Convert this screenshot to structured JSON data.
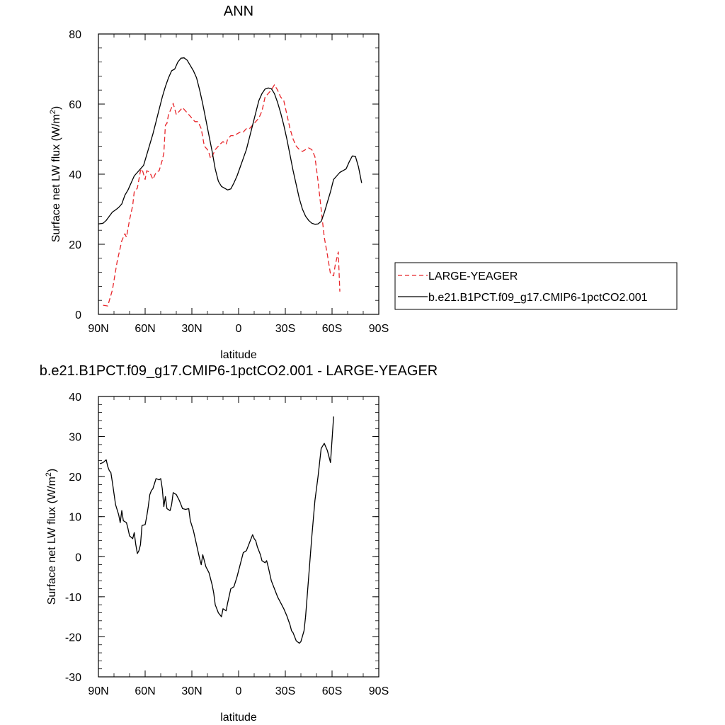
{
  "chart_data": [
    {
      "type": "line",
      "title": "ANN",
      "xlabel": "latitude",
      "ylabel": "Surface net LW flux (W/m",
      "ylabel_sup": "2",
      "ylabel_end": ")",
      "xlim": [
        90,
        -90
      ],
      "ylim": [
        0,
        80
      ],
      "x_tick_values": [
        90,
        60,
        30,
        0,
        -30,
        -60,
        -90
      ],
      "x_tick_labels": [
        "90N",
        "60N",
        "30N",
        "0",
        "30S",
        "60S",
        "90S"
      ],
      "y_tick_values": [
        0,
        20,
        40,
        60,
        80
      ],
      "y_tick_labels": [
        "0",
        "20",
        "40",
        "60",
        "80"
      ],
      "grid": false,
      "legend_position": "right",
      "series": [
        {
          "name": "LARGE-YEAGER",
          "color": "#e8262b",
          "dash": "dashed",
          "points": [
            [
              87,
              2.6
            ],
            [
              84,
              2.4
            ],
            [
              81,
              7
            ],
            [
              78,
              15
            ],
            [
              75,
              21
            ],
            [
              73,
              23
            ],
            [
              72,
              22
            ],
            [
              70,
              27
            ],
            [
              68,
              31
            ],
            [
              67,
              35
            ],
            [
              65,
              36
            ],
            [
              63,
              41
            ],
            [
              62,
              41.5
            ],
            [
              60,
              38.5
            ],
            [
              59,
              41
            ],
            [
              57,
              40.5
            ],
            [
              55,
              38.5
            ],
            [
              53,
              40.5
            ],
            [
              51,
              41
            ],
            [
              49,
              44
            ],
            [
              48,
              46
            ],
            [
              47,
              54
            ],
            [
              46,
              54.5
            ],
            [
              45,
              57
            ],
            [
              43,
              59
            ],
            [
              42,
              60.2
            ],
            [
              40,
              57
            ],
            [
              38,
              58
            ],
            [
              36,
              59
            ],
            [
              34,
              58
            ],
            [
              32,
              57
            ],
            [
              30,
              56
            ],
            [
              28,
              55
            ],
            [
              26,
              55
            ],
            [
              24,
              53
            ],
            [
              22,
              48
            ],
            [
              20,
              47
            ],
            [
              19,
              46
            ],
            [
              18,
              44.5
            ],
            [
              17,
              45
            ],
            [
              15,
              47
            ],
            [
              13,
              48
            ],
            [
              12,
              48.5
            ],
            [
              10,
              49.3
            ],
            [
              8,
              48.5
            ],
            [
              7,
              50
            ],
            [
              5,
              51
            ],
            [
              3,
              51
            ],
            [
              1,
              51.5
            ],
            [
              -1,
              52
            ],
            [
              -3,
              52
            ],
            [
              -5,
              53
            ],
            [
              -7,
              53
            ],
            [
              -9,
              54
            ],
            [
              -11,
              55
            ],
            [
              -13,
              56
            ],
            [
              -15,
              58
            ],
            [
              -17,
              62
            ],
            [
              -19,
              63
            ],
            [
              -21,
              64
            ],
            [
              -23,
              65.5
            ],
            [
              -25,
              64
            ],
            [
              -27,
              62
            ],
            [
              -29,
              61
            ],
            [
              -31,
              57
            ],
            [
              -33,
              53
            ],
            [
              -35,
              50
            ],
            [
              -37,
              48
            ],
            [
              -39,
              47
            ],
            [
              -41,
              46.5
            ],
            [
              -43,
              47
            ],
            [
              -45,
              47.5
            ],
            [
              -47,
              47
            ],
            [
              -49,
              45
            ],
            [
              -51,
              38
            ],
            [
              -53,
              30
            ],
            [
              -55,
              22
            ],
            [
              -57,
              17
            ],
            [
              -59,
              11.5
            ],
            [
              -61,
              11
            ],
            [
              -62,
              14
            ],
            [
              -64,
              17.8
            ],
            [
              -65,
              6.5
            ]
          ]
        },
        {
          "name": "b.e21.B1PCT.f09_g17.CMIP6-1pctCO2.001",
          "color": "#000000",
          "dash": "solid",
          "points": [
            [
              90,
              25.8
            ],
            [
              87,
              26
            ],
            [
              85,
              26.8
            ],
            [
              83,
              28
            ],
            [
              81,
              29.2
            ],
            [
              79,
              29.8
            ],
            [
              77,
              30.5
            ],
            [
              75,
              31.5
            ],
            [
              73,
              34
            ],
            [
              71,
              35.5
            ],
            [
              69,
              37.5
            ],
            [
              67,
              39.5
            ],
            [
              65,
              40.5
            ],
            [
              63,
              41.5
            ],
            [
              61,
              42.5
            ],
            [
              59,
              45.5
            ],
            [
              57,
              48.5
            ],
            [
              55,
              51.5
            ],
            [
              53,
              55
            ],
            [
              51,
              58.5
            ],
            [
              49,
              62
            ],
            [
              47,
              65
            ],
            [
              45,
              67.5
            ],
            [
              43,
              69.5
            ],
            [
              41,
              70
            ],
            [
              39,
              72
            ],
            [
              37,
              73.1
            ],
            [
              35,
              73.2
            ],
            [
              33,
              72.5
            ],
            [
              31,
              71
            ],
            [
              29,
              69.5
            ],
            [
              27,
              67.5
            ],
            [
              25,
              64
            ],
            [
              23,
              60
            ],
            [
              21,
              55.5
            ],
            [
              19,
              51
            ],
            [
              17,
              46.5
            ],
            [
              15,
              41.5
            ],
            [
              13,
              38
            ],
            [
              11,
              36.5
            ],
            [
              9,
              36
            ],
            [
              7,
              35.5
            ],
            [
              5,
              35.8
            ],
            [
              3,
              37.5
            ],
            [
              1,
              39.5
            ],
            [
              -1,
              42
            ],
            [
              -3,
              44.5
            ],
            [
              -5,
              47
            ],
            [
              -7,
              50.5
            ],
            [
              -9,
              54
            ],
            [
              -11,
              57.5
            ],
            [
              -13,
              61
            ],
            [
              -15,
              63
            ],
            [
              -17,
              64.3
            ],
            [
              -19,
              64.6
            ],
            [
              -21,
              64.4
            ],
            [
              -23,
              63
            ],
            [
              -25,
              60.5
            ],
            [
              -27,
              57.5
            ],
            [
              -29,
              54
            ],
            [
              -31,
              50
            ],
            [
              -33,
              45.5
            ],
            [
              -35,
              41
            ],
            [
              -37,
              37
            ],
            [
              -39,
              33
            ],
            [
              -41,
              30
            ],
            [
              -43,
              28
            ],
            [
              -45,
              26.8
            ],
            [
              -47,
              26
            ],
            [
              -49,
              25.7
            ],
            [
              -51,
              25.8
            ],
            [
              -53,
              26.5
            ],
            [
              -55,
              29
            ],
            [
              -57,
              32
            ],
            [
              -59,
              35
            ],
            [
              -61,
              38.5
            ],
            [
              -63,
              39.5
            ],
            [
              -65,
              40.5
            ],
            [
              -67,
              41
            ],
            [
              -69,
              41.5
            ],
            [
              -71,
              43.5
            ],
            [
              -73,
              45.2
            ],
            [
              -75,
              45.1
            ],
            [
              -77,
              42
            ],
            [
              -79,
              37.5
            ]
          ]
        }
      ]
    },
    {
      "type": "line",
      "title": "b.e21.B1PCT.f09_g17.CMIP6-1pctCO2.001 - LARGE-YEAGER",
      "xlabel": "latitude",
      "ylabel": "Surface net LW flux (W/m",
      "ylabel_sup": "2",
      "ylabel_end": ")",
      "xlim": [
        90,
        -90
      ],
      "ylim": [
        -30,
        40
      ],
      "x_tick_values": [
        90,
        60,
        30,
        0,
        -30,
        -60,
        -90
      ],
      "x_tick_labels": [
        "90N",
        "60N",
        "30N",
        "0",
        "30S",
        "60S",
        "90S"
      ],
      "y_tick_values": [
        -30,
        -20,
        -10,
        0,
        10,
        20,
        30,
        40
      ],
      "y_tick_labels": [
        "-30",
        "-20",
        "-10",
        "0",
        "10",
        "20",
        "30",
        "40"
      ],
      "grid": false,
      "series": [
        {
          "color": "#000000",
          "dash": "solid",
          "points": [
            [
              89,
              23.2
            ],
            [
              87,
              23.5
            ],
            [
              85,
              24.2
            ],
            [
              84,
              22.5
            ],
            [
              83,
              21.5
            ],
            [
              82,
              21
            ],
            [
              81,
              18.5
            ],
            [
              79,
              13
            ],
            [
              77,
              10.5
            ],
            [
              76,
              8.5
            ],
            [
              75,
              11.5
            ],
            [
              74,
              9
            ],
            [
              72,
              8.5
            ],
            [
              71,
              7
            ],
            [
              70,
              5.2
            ],
            [
              68,
              4.5
            ],
            [
              67,
              6
            ],
            [
              66,
              3
            ],
            [
              65,
              0.8
            ],
            [
              64,
              1.5
            ],
            [
              63,
              3
            ],
            [
              62,
              7.8
            ],
            [
              60,
              8
            ],
            [
              59,
              10
            ],
            [
              58,
              12.5
            ],
            [
              57,
              15.5
            ],
            [
              56,
              16.5
            ],
            [
              55,
              17
            ],
            [
              53,
              19.5
            ],
            [
              51,
              19.2
            ],
            [
              50,
              19.5
            ],
            [
              49,
              17
            ],
            [
              48,
              12.5
            ],
            [
              47,
              15
            ],
            [
              46,
              12
            ],
            [
              44,
              11.5
            ],
            [
              43,
              13
            ],
            [
              42,
              16
            ],
            [
              40,
              15.5
            ],
            [
              38,
              14
            ],
            [
              36,
              12
            ],
            [
              34,
              11.8
            ],
            [
              32,
              12
            ],
            [
              31,
              9
            ],
            [
              29,
              6.5
            ],
            [
              27,
              3
            ],
            [
              25,
              -0.5
            ],
            [
              24,
              -2
            ],
            [
              23,
              0.5
            ],
            [
              21,
              -2.5
            ],
            [
              19,
              -4
            ],
            [
              17,
              -7
            ],
            [
              16,
              -9
            ],
            [
              15,
              -12
            ],
            [
              13,
              -14
            ],
            [
              12,
              -14.5
            ],
            [
              11,
              -15
            ],
            [
              10,
              -13
            ],
            [
              8,
              -13.5
            ],
            [
              7,
              -11.5
            ],
            [
              5,
              -8
            ],
            [
              3,
              -7.5
            ],
            [
              1,
              -5
            ],
            [
              -1,
              -2
            ],
            [
              -3,
              1
            ],
            [
              -5,
              1.5
            ],
            [
              -7,
              3.5
            ],
            [
              -9,
              5.5
            ],
            [
              -10,
              4.5
            ],
            [
              -11,
              4
            ],
            [
              -12,
              2.5
            ],
            [
              -14,
              0.5
            ],
            [
              -15,
              -1
            ],
            [
              -17,
              -1.5
            ],
            [
              -18,
              -1
            ],
            [
              -19,
              -2.5
            ],
            [
              -21,
              -6
            ],
            [
              -23,
              -8
            ],
            [
              -25,
              -10
            ],
            [
              -27,
              -11.5
            ],
            [
              -29,
              -13
            ],
            [
              -31,
              -14.8
            ],
            [
              -33,
              -17
            ],
            [
              -34,
              -18.5
            ],
            [
              -35,
              -19
            ],
            [
              -37,
              -21
            ],
            [
              -39,
              -21.6
            ],
            [
              -40,
              -21.2
            ],
            [
              -42,
              -18.5
            ],
            [
              -43,
              -15
            ],
            [
              -44,
              -10
            ],
            [
              -45,
              -5
            ],
            [
              -47,
              5
            ],
            [
              -49,
              14
            ],
            [
              -51,
              20
            ],
            [
              -53,
              27
            ],
            [
              -55,
              28.3
            ],
            [
              -57,
              26.5
            ],
            [
              -59,
              23.5
            ],
            [
              -61,
              35
            ]
          ]
        }
      ]
    }
  ]
}
